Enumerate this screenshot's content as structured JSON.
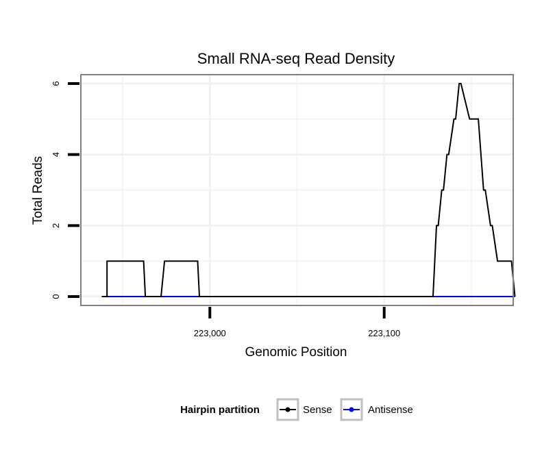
{
  "chart_data": {
    "type": "line",
    "title": "Small RNA-seq Read Density",
    "xlabel": "Genomic Position",
    "ylabel": "Total Reads",
    "xlim": [
      222926,
      223174
    ],
    "ylim": [
      -0.25,
      6.25
    ],
    "grid": true,
    "x_ticks": [
      {
        "value": 223000,
        "label": "223,000"
      },
      {
        "value": 223100,
        "label": "223,100"
      }
    ],
    "y_ticks": [
      {
        "value": 0,
        "label": "0"
      },
      {
        "value": 2,
        "label": "2"
      },
      {
        "value": 4,
        "label": "4"
      },
      {
        "value": 6,
        "label": "6"
      }
    ],
    "legend": {
      "title": "Hairpin partition",
      "placement": "bottom"
    },
    "series": [
      {
        "name": "Sense",
        "color": "#000000",
        "x": [
          222938,
          222941,
          222941,
          222943,
          222962,
          222963,
          222972,
          222974,
          222993,
          222994,
          223128,
          223130,
          223131,
          223133,
          223134,
          223136,
          223137,
          223140,
          223141,
          223143,
          223144,
          223149,
          223150,
          223153,
          223154,
          223157,
          223158,
          223161,
          223162,
          223165,
          223173,
          223175
        ],
        "y": [
          0,
          0,
          1,
          1,
          1,
          0,
          0,
          1,
          1,
          0,
          0,
          2,
          2,
          3,
          3,
          4,
          4,
          5,
          5,
          6,
          6,
          5,
          5,
          5,
          5,
          3,
          3,
          2,
          2,
          1,
          1,
          0
        ]
      },
      {
        "name": "Antisense",
        "color": "#0000ff",
        "x": [
          222938,
          223175
        ],
        "y": [
          0,
          0
        ]
      }
    ]
  }
}
